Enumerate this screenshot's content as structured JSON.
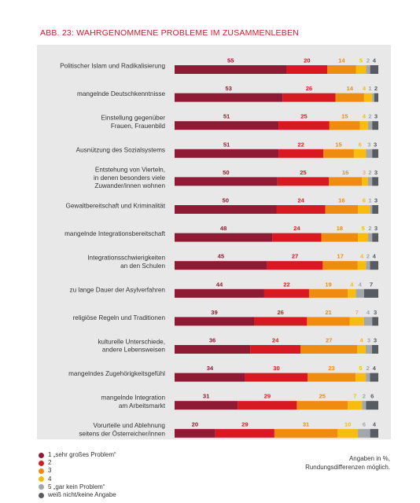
{
  "title": "ABB. 23: WAHRGENOMMENE PROBLEME IM ZUSAMMENLEBEN",
  "note": {
    "line1": "Angaben in %,",
    "line2": "Rundungsdifferenzen möglich."
  },
  "colors": [
    "#8e1b33",
    "#d71a21",
    "#ee8c12",
    "#f8bb10",
    "#a3a7ab",
    "#575b62"
  ],
  "chart_data": {
    "type": "bar",
    "orientation": "horizontal",
    "stacked": true,
    "title": "ABB. 23: WAHRGENOMMENE PROBLEME IM ZUSAMMENLEBEN",
    "unit": "%",
    "xlim": [
      0,
      100
    ],
    "grid": false,
    "legend_position": "bottom-left",
    "categories": [
      [
        "Politischer Islam und Radikalisierung"
      ],
      [
        "mangelnde Deutschkenntnisse"
      ],
      [
        "Einstellung gegenüber",
        "Frauen, Frauenbild"
      ],
      [
        "Ausnützung des Sozialsystems"
      ],
      [
        "Entstehung von Vierteln,",
        "in denen besonders viele",
        "Zuwander/innen wohnen"
      ],
      [
        "Gewaltbereitschaft und Kriminalität"
      ],
      [
        "mangelnde Integrationsbereitschaft"
      ],
      [
        "Integrationsschwierigkeiten",
        "an den Schulen"
      ],
      [
        "zu lange Dauer der Asylverfahren"
      ],
      [
        "religiöse Regeln und Traditionen"
      ],
      [
        "kulturelle Unterschiede,",
        "andere Lebensweisen"
      ],
      [
        "mangelndes Zugehörigkeitsgefühl"
      ],
      [
        "mangelnde Integration",
        "am Arbeitsmarkt"
      ],
      [
        "Vorurteile und Ablehnung",
        "seitens der Österreicher/innen"
      ]
    ],
    "series": [
      {
        "name": "1 „sehr großes Problem“",
        "values": [
          55,
          53,
          51,
          51,
          50,
          50,
          48,
          45,
          44,
          39,
          36,
          34,
          31,
          20
        ]
      },
      {
        "name": "2",
        "values": [
          20,
          26,
          25,
          22,
          25,
          24,
          24,
          27,
          22,
          26,
          24,
          30,
          29,
          29
        ]
      },
      {
        "name": "3",
        "values": [
          14,
          14,
          15,
          15,
          16,
          16,
          18,
          17,
          19,
          21,
          27,
          23,
          25,
          31
        ]
      },
      {
        "name": "4",
        "values": [
          5,
          4,
          4,
          6,
          3,
          6,
          5,
          4,
          4,
          7,
          4,
          5,
          7,
          10
        ]
      },
      {
        "name": "5 „gar kein Problem“",
        "values": [
          2,
          1,
          2,
          3,
          2,
          1,
          2,
          2,
          4,
          4,
          3,
          2,
          2,
          6
        ]
      },
      {
        "name": "weiß nicht/keine Angabe",
        "values": [
          4,
          2,
          3,
          3,
          3,
          3,
          3,
          4,
          7,
          3,
          3,
          4,
          6,
          4
        ]
      }
    ]
  }
}
